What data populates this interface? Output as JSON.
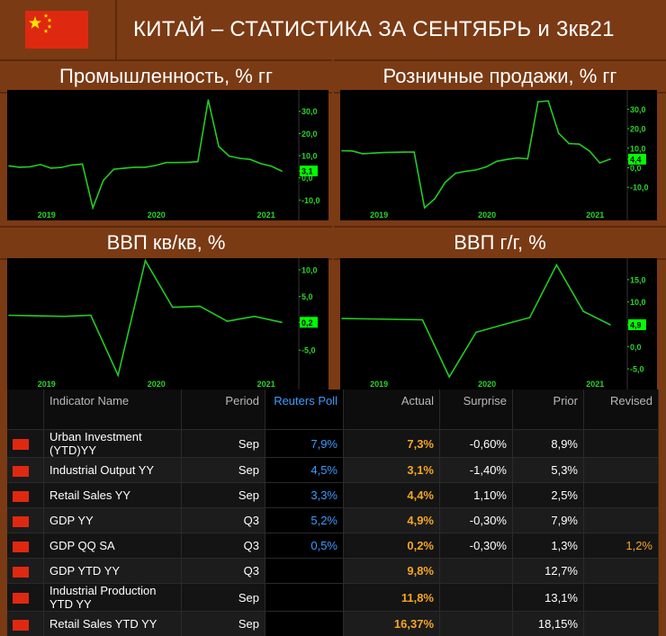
{
  "header": {
    "title": "КИТАЙ – СТАТИСТИКА ЗА СЕНТЯБРЬ и 3кв21"
  },
  "colors": {
    "background": "#7a3a14",
    "line": "#22cc22",
    "marker": "#00ff00",
    "poll": "#3d9bff",
    "actual": "#f5a623"
  },
  "chart_data": [
    {
      "type": "line",
      "title": "Промышленность, % гг",
      "x_ticks": [
        "2019",
        "2020",
        "2021"
      ],
      "y_ticks": [
        "30,0",
        "20,0",
        "10,0",
        "3,1",
        "0,0",
        "-10,0"
      ],
      "ylim": [
        -13.5,
        38
      ],
      "last_value_label": "3,1",
      "last_value": 3.1,
      "values": [
        5.4,
        4.8,
        5.0,
        6.0,
        4.4,
        4.7,
        5.8,
        6.2,
        -13.5,
        -1.1,
        3.9,
        4.4,
        4.8,
        4.8,
        5.6,
        6.9,
        6.9,
        7.0,
        7.3,
        35.1,
        14.1,
        9.8,
        8.8,
        8.3,
        6.4,
        5.3,
        3.1
      ]
    },
    {
      "type": "line",
      "title": "Розничные продажи, % гг",
      "x_ticks": [
        "2019",
        "2020",
        "2021"
      ],
      "y_ticks": [
        "30,0",
        "20,0",
        "10,0",
        "4,4",
        "0,0",
        "-10,0"
      ],
      "ylim": [
        -20.5,
        38
      ],
      "last_value_label": "4,4",
      "last_value": 4.4,
      "values": [
        8.7,
        8.6,
        7.2,
        7.5,
        7.8,
        7.9,
        8.0,
        8.0,
        -20.5,
        -15.8,
        -7.5,
        -2.8,
        -1.8,
        -1.1,
        0.5,
        3.3,
        4.3,
        5.0,
        4.6,
        33.8,
        34.2,
        17.7,
        12.4,
        12.1,
        8.5,
        2.5,
        4.4
      ]
    },
    {
      "type": "line",
      "title": "ВВП кв/кв, %",
      "x_ticks": [
        "2019",
        "2020",
        "2021"
      ],
      "y_ticks": [
        "10,0",
        "5,0",
        "0,2",
        "-5,0"
      ],
      "ylim": [
        -10,
        11.5
      ],
      "last_value_label": "0,2",
      "last_value": 0.2,
      "values": [
        1.5,
        1.4,
        1.3,
        1.5,
        -9.7,
        11.7,
        3.0,
        3.2,
        0.4,
        1.3,
        0.2
      ]
    },
    {
      "type": "line",
      "title": "ВВП г/г, %",
      "x_ticks": [
        "2019",
        "2020",
        "2021"
      ],
      "y_ticks": [
        "15,0",
        "10,0",
        "4,9",
        "0,0",
        "-5,0"
      ],
      "ylim": [
        -6.8,
        19
      ],
      "last_value_label": "4,9",
      "last_value": 4.9,
      "values": [
        6.3,
        6.2,
        6.1,
        6.0,
        -6.8,
        3.2,
        4.9,
        6.5,
        18.3,
        7.9,
        4.9
      ]
    }
  ],
  "table": {
    "headers": {
      "name": "Indicator Name",
      "period": "Period",
      "poll": "Reuters Poll",
      "actual": "Actual",
      "surprise": "Surprise",
      "prior": "Prior",
      "revised": "Revised"
    },
    "rows": [
      {
        "name": "Urban Investment (YTD)YY",
        "period": "Sep",
        "poll": "7,9%",
        "actual": "7,3%",
        "surprise": "-0,60%",
        "prior": "8,9%",
        "revised": ""
      },
      {
        "name": "Industrial Output YY",
        "period": "Sep",
        "poll": "4,5%",
        "actual": "3,1%",
        "surprise": "-1,40%",
        "prior": "5,3%",
        "revised": ""
      },
      {
        "name": "Retail Sales YY",
        "period": "Sep",
        "poll": "3,3%",
        "actual": "4,4%",
        "surprise": "1,10%",
        "prior": "2,5%",
        "revised": ""
      },
      {
        "name": "GDP YY",
        "period": "Q3",
        "poll": "5,2%",
        "actual": "4,9%",
        "surprise": "-0,30%",
        "prior": "7,9%",
        "revised": ""
      },
      {
        "name": "GDP QQ SA",
        "period": "Q3",
        "poll": "0,5%",
        "actual": "0,2%",
        "surprise": "-0,30%",
        "prior": "1,3%",
        "revised": "1,2%"
      },
      {
        "name": "GDP YTD YY",
        "period": "Q3",
        "poll": "",
        "actual": "9,8%",
        "surprise": "",
        "prior": "12,7%",
        "revised": ""
      },
      {
        "name": "Industrial Production YTD YY",
        "period": "Sep",
        "poll": "",
        "actual": "11,8%",
        "surprise": "",
        "prior": "13,1%",
        "revised": ""
      },
      {
        "name": "Retail Sales YTD YY",
        "period": "Sep",
        "poll": "",
        "actual": "16,37%",
        "surprise": "",
        "prior": "18,15%",
        "revised": ""
      }
    ]
  }
}
